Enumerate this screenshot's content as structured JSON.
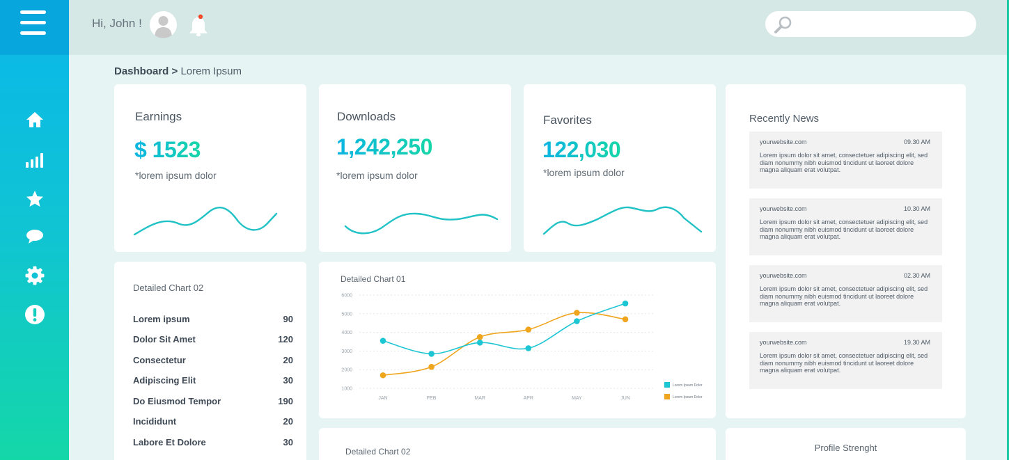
{
  "header": {
    "greeting": "Hi, John !",
    "search": {
      "placeholder": "",
      "value": ""
    }
  },
  "sidebar": {
    "items": [
      {
        "name": "home",
        "icon": "home-icon"
      },
      {
        "name": "stats",
        "icon": "bar-chart-icon"
      },
      {
        "name": "favorites",
        "icon": "star-icon"
      },
      {
        "name": "messages",
        "icon": "chat-bubble-icon"
      },
      {
        "name": "settings",
        "icon": "gear-icon"
      },
      {
        "name": "alerts",
        "icon": "exclamation-icon"
      }
    ]
  },
  "breadcrumb": {
    "root": "Dashboard",
    "separator": ">",
    "current": "Lorem Ipsum"
  },
  "stats": [
    {
      "title": "Earnings",
      "value": "$ 1523",
      "sub": "*lorem ipsum dolor"
    },
    {
      "title": "Downloads",
      "value": "1,242,250",
      "sub": "*lorem ipsum dolor"
    },
    {
      "title": "Favorites",
      "value": "122,030",
      "sub": "*lorem ipsum dolor"
    }
  ],
  "detailed_list": {
    "title": "Detailed Chart 02",
    "rows": [
      {
        "label": "Lorem ipsum",
        "value": "90"
      },
      {
        "label": "Dolor Sit Amet",
        "value": "120"
      },
      {
        "label": "Consectetur",
        "value": "20"
      },
      {
        "label": "Adipiscing Elit",
        "value": "30"
      },
      {
        "label": "Do Eiusmod Tempor",
        "value": "190"
      },
      {
        "label": "Incididunt",
        "value": "20"
      },
      {
        "label": "Labore Et Dolore",
        "value": "30"
      }
    ]
  },
  "chart_data": {
    "type": "line",
    "title": "Detailed Chart 01",
    "categories": [
      "JAN",
      "FEB",
      "MAR",
      "APR",
      "MAY",
      "JUN"
    ],
    "ylim": [
      1000,
      6000
    ],
    "yticks": [
      "1000",
      "2000",
      "3000",
      "4000",
      "5000",
      "6000"
    ],
    "grid": true,
    "legend": "right",
    "series": [
      {
        "name": "Lorem Ipsum Dolor",
        "color": "#1ec6d4",
        "values": [
          3550,
          2850,
          3450,
          3150,
          4600,
          5550
        ]
      },
      {
        "name": "Lorem Ipsum Dolor",
        "color": "#f0a51e",
        "values": [
          1700,
          2150,
          3750,
          4150,
          5050,
          4700
        ]
      }
    ]
  },
  "bottom": {
    "chart2_title": "Detailed Chart 02",
    "profile_title": "Profile Strenght"
  },
  "news": {
    "title": "Recently News",
    "items": [
      {
        "site": "yourwebsite.com",
        "time": "09.30 AM",
        "body": "Lorem ipsum dolor sit amet, consectetuer adipiscing elit, sed diam nonummy nibh euismod tincidunt ut laoreet dolore magna aliquam erat volutpat."
      },
      {
        "site": "yourwebsite.com",
        "time": "10.30 AM",
        "body": "Lorem ipsum dolor sit amet, consectetuer adipiscing elit, sed diam nonummy nibh euismod tincidunt ut laoreet dolore magna aliquam erat volutpat."
      },
      {
        "site": "yourwebsite.com",
        "time": "02.30 AM",
        "body": "Lorem ipsum dolor sit amet, consectetuer adipiscing elit, sed diam nonummy nibh euismod tincidunt ut laoreet dolore magna aliquam erat volutpat."
      },
      {
        "site": "yourwebsite.com",
        "time": "19.30 AM",
        "body": "Lorem ipsum dolor sit amet, consectetuer adipiscing elit, sed diam nonummy nibh euismod tincidunt ut laoreet dolore magna aliquam erat volutpat."
      }
    ]
  },
  "colors": {
    "accent_start": "#0bb4e2",
    "accent_end": "#17d6a8",
    "notification_dot": "#f04a2a"
  }
}
